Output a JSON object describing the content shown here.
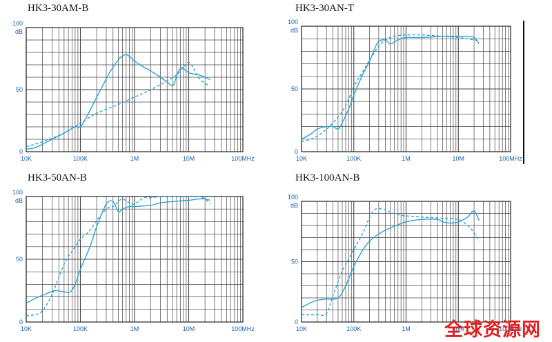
{
  "colors": {
    "series": "#29a3d3",
    "grid": "#444444",
    "text": "#1a5fa8",
    "watermark": "#e02020"
  },
  "watermark": "全球资源网",
  "chart_data": [
    {
      "type": "line",
      "title": "HK3-30AM-B",
      "x_scale": "log",
      "xlim": [
        10000,
        100000000
      ],
      "ylim": [
        0,
        100
      ],
      "x_ticks": [
        "10K",
        "100K",
        "1M",
        "10M",
        "100MHz"
      ],
      "y_ticks": [
        "0",
        "50",
        "100"
      ],
      "ylabel": "dB",
      "grid": true,
      "series": [
        {
          "style": "solid",
          "x": [
            10000,
            14000,
            20000,
            30000,
            50000,
            80000,
            100000,
            130000,
            180000,
            250000,
            350000,
            500000,
            650000,
            800000,
            1000000,
            1500000,
            2000000,
            3000000,
            4000000,
            5000000,
            5600000,
            6500000,
            7500000,
            9000000,
            11000000,
            15000000,
            20000000,
            25000000
          ],
          "y": [
            2,
            3,
            6,
            10,
            15,
            20,
            20,
            28,
            40,
            52,
            64,
            74,
            78,
            77,
            73,
            68,
            65,
            60,
            56,
            53,
            57,
            65,
            68,
            65,
            63,
            62,
            60,
            58
          ]
        },
        {
          "style": "dashed",
          "x": [
            10000,
            20000,
            50000,
            100000,
            200000,
            500000,
            1000000,
            2000000,
            4000000,
            6000000,
            8000000,
            10000000,
            12000000,
            15000000,
            20000000,
            25000000
          ],
          "y": [
            4,
            8,
            15,
            23,
            31,
            38,
            44,
            50,
            57,
            62,
            68,
            72,
            68,
            60,
            55,
            53
          ]
        }
      ]
    },
    {
      "type": "line",
      "title": "HK3-30AN-T",
      "x_scale": "log",
      "xlim": [
        10000,
        100000000
      ],
      "ylim": [
        0,
        100
      ],
      "x_ticks": [
        "10K",
        "100K",
        "1M",
        "10M",
        "100MHz"
      ],
      "y_ticks": [
        "0",
        "50",
        "100"
      ],
      "ylabel": "dB",
      "grid": true,
      "series": [
        {
          "style": "solid",
          "x": [
            10000,
            15000,
            20000,
            30000,
            40000,
            50000,
            60000,
            80000,
            100000,
            150000,
            200000,
            250000,
            300000,
            400000,
            500000,
            700000,
            1000000,
            2000000,
            5000000,
            10000000,
            15000000,
            20000000,
            25000000
          ],
          "y": [
            10,
            14,
            18,
            20,
            20,
            18,
            23,
            34,
            45,
            62,
            72,
            82,
            88,
            89,
            86,
            89,
            91,
            91,
            92,
            92,
            92,
            91,
            86
          ]
        },
        {
          "style": "dashed",
          "x": [
            10000,
            15000,
            25000,
            40000,
            60000,
            80000,
            100000,
            150000,
            200000,
            300000,
            400000,
            600000,
            1000000,
            2000000,
            5000000,
            10000000,
            15000000,
            20000000,
            25000000
          ],
          "y": [
            8,
            10,
            15,
            23,
            32,
            42,
            52,
            64,
            73,
            84,
            89,
            92,
            93,
            93,
            92,
            91,
            90,
            89,
            88
          ]
        }
      ]
    },
    {
      "type": "line",
      "title": "HK3-50AN-B",
      "x_scale": "log",
      "xlim": [
        10000,
        100000000
      ],
      "ylim": [
        0,
        100
      ],
      "x_ticks": [
        "10K",
        "100K",
        "1M",
        "10M",
        "100MHz"
      ],
      "y_ticks": [
        "0",
        "50",
        "100"
      ],
      "ylabel": "dB",
      "grid": true,
      "series": [
        {
          "style": "solid",
          "x": [
            10000,
            15000,
            25000,
            35000,
            50000,
            65000,
            80000,
            100000,
            150000,
            200000,
            300000,
            400000,
            500000,
            600000,
            800000,
            1000000,
            2000000,
            3000000,
            5000000,
            10000000,
            15000000,
            20000000,
            25000000
          ],
          "y": [
            15,
            19,
            23,
            25,
            24,
            24,
            30,
            42,
            60,
            76,
            94,
            96,
            88,
            90,
            92,
            92,
            93,
            95,
            96,
            97,
            98,
            98,
            97
          ]
        },
        {
          "style": "dashed",
          "x": [
            10000,
            15000,
            20000,
            30000,
            50000,
            80000,
            100000,
            150000,
            200000,
            300000,
            400000,
            500000,
            600000,
            800000,
            1000000,
            1500000,
            2000000,
            3000000,
            5000000,
            10000000,
            15000000,
            20000000,
            25000000
          ],
          "y": [
            5,
            6,
            9,
            22,
            46,
            60,
            66,
            73,
            81,
            90,
            92,
            96,
            98,
            95,
            94,
            99,
            99,
            100,
            100,
            100,
            100,
            98,
            94
          ]
        }
      ]
    },
    {
      "type": "line",
      "title": "HK3-100AN-B",
      "x_scale": "log",
      "xlim": [
        10000,
        100000000
      ],
      "ylim": [
        0,
        100
      ],
      "x_ticks": [
        "10K",
        "100K",
        "1M",
        "10M",
        "100MHz"
      ],
      "y_ticks": [
        "0",
        "50",
        "100"
      ],
      "ylabel": "dB",
      "grid": true,
      "series": [
        {
          "style": "solid",
          "x": [
            10000,
            15000,
            20000,
            30000,
            50000,
            70000,
            100000,
            150000,
            200000,
            300000,
            500000,
            1000000,
            2000000,
            4000000,
            5000000,
            7000000,
            10000000,
            15000000,
            20000000,
            25000000
          ],
          "y": [
            12,
            16,
            18,
            19,
            20,
            30,
            46,
            60,
            67,
            73,
            78,
            83,
            85,
            85,
            83,
            82,
            83,
            87,
            92,
            84
          ]
        },
        {
          "style": "dashed",
          "x": [
            10000,
            15000,
            20000,
            30000,
            40000,
            60000,
            80000,
            100000,
            150000,
            200000,
            250000,
            300000,
            400000,
            500000,
            700000,
            1000000,
            2000000,
            5000000,
            10000000,
            15000000,
            20000000,
            25000000
          ],
          "y": [
            6,
            6,
            6,
            7,
            22,
            42,
            52,
            60,
            74,
            87,
            93,
            94,
            93,
            91,
            89,
            88,
            87,
            86,
            85,
            80,
            74,
            67
          ]
        }
      ]
    }
  ]
}
